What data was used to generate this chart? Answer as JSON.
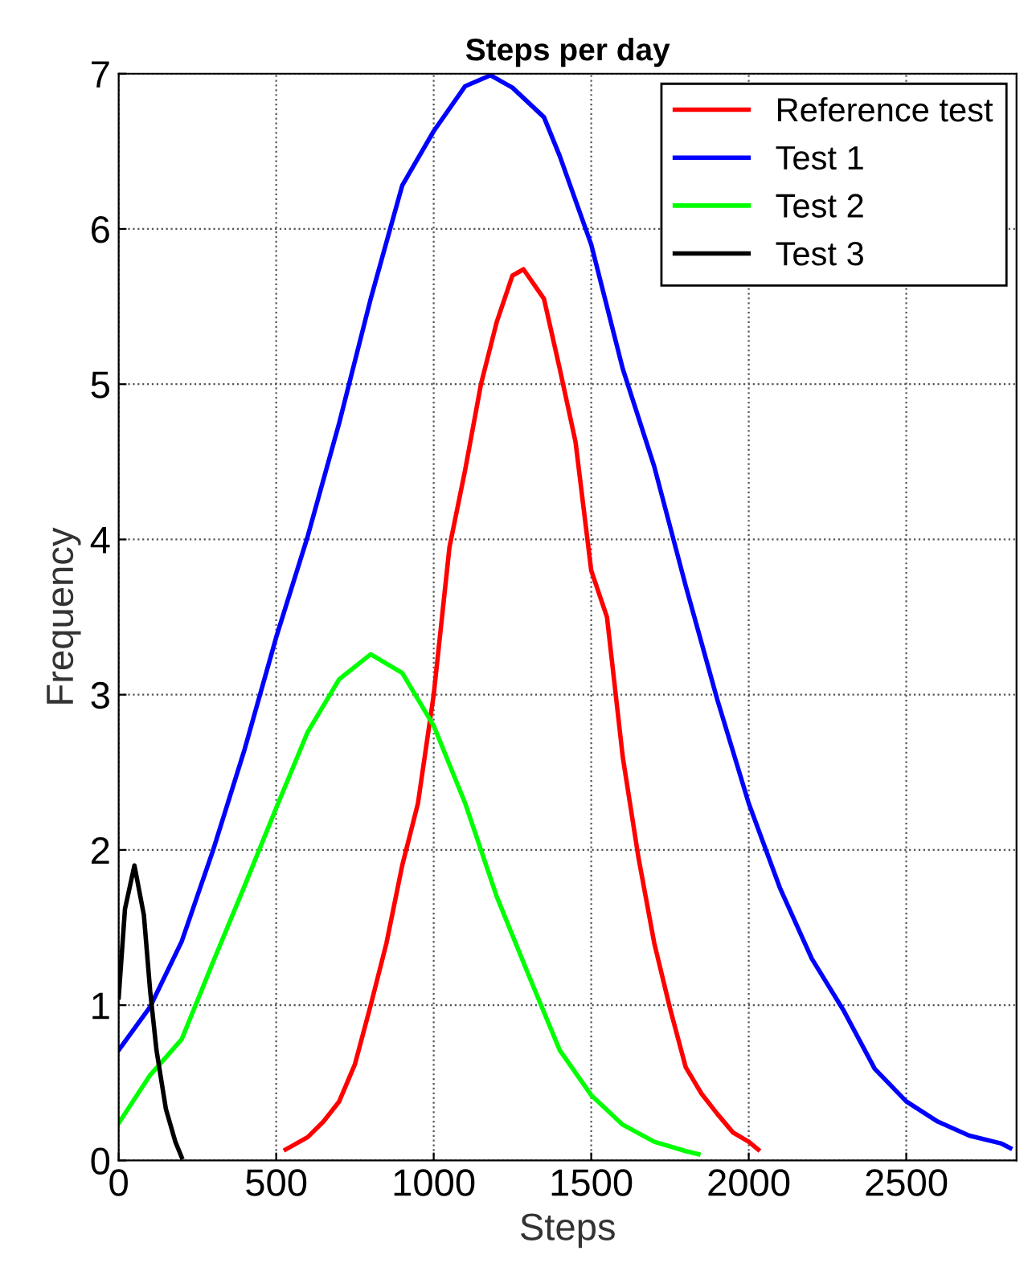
{
  "chart_data": {
    "type": "line",
    "title": "Steps per day",
    "xlabel": "Steps",
    "ylabel": "Frequency",
    "xlim": [
      0,
      2850
    ],
    "ylim": [
      0,
      7
    ],
    "xticks": [
      0,
      500,
      1000,
      1500,
      2000,
      2500
    ],
    "yticks": [
      0,
      1,
      2,
      3,
      4,
      5,
      6,
      7
    ],
    "grid": true,
    "legend": "top right",
    "line_style": "solid",
    "marker": "none",
    "series": [
      {
        "name": "Reference test",
        "color": "#ff0000",
        "x": [
          530,
          600,
          650,
          700,
          750,
          800,
          850,
          900,
          950,
          1000,
          1050,
          1100,
          1150,
          1200,
          1250,
          1285,
          1350,
          1400,
          1450,
          1500,
          1550,
          1600,
          1650,
          1700,
          1750,
          1800,
          1850,
          1900,
          1950,
          2000,
          2030
        ],
        "values": [
          0.07,
          0.15,
          0.25,
          0.38,
          0.62,
          1.0,
          1.4,
          1.9,
          2.3,
          3.0,
          3.95,
          4.45,
          5.0,
          5.4,
          5.7,
          5.74,
          5.55,
          5.1,
          4.63,
          3.8,
          3.5,
          2.6,
          1.95,
          1.4,
          0.98,
          0.6,
          0.43,
          0.3,
          0.18,
          0.12,
          0.07
        ]
      },
      {
        "name": "Test 1",
        "color": "#0000ff",
        "x": [
          0,
          100,
          200,
          300,
          400,
          500,
          600,
          700,
          800,
          900,
          1000,
          1100,
          1180,
          1250,
          1350,
          1400,
          1500,
          1600,
          1700,
          1800,
          1900,
          2000,
          2100,
          2200,
          2300,
          2400,
          2500,
          2600,
          2700,
          2800,
          2830
        ],
        "values": [
          0.71,
          0.99,
          1.41,
          2.0,
          2.65,
          3.37,
          4.02,
          4.75,
          5.55,
          6.28,
          6.63,
          6.92,
          6.99,
          6.91,
          6.72,
          6.47,
          5.9,
          5.1,
          4.47,
          3.7,
          2.97,
          2.3,
          1.75,
          1.3,
          0.97,
          0.59,
          0.38,
          0.25,
          0.16,
          0.11,
          0.08
        ]
      },
      {
        "name": "Test 2",
        "color": "#00ff00",
        "x": [
          0,
          100,
          200,
          300,
          400,
          500,
          600,
          700,
          800,
          900,
          1000,
          1100,
          1200,
          1300,
          1400,
          1500,
          1600,
          1700,
          1800,
          1840
        ],
        "values": [
          0.24,
          0.55,
          0.78,
          1.28,
          1.77,
          2.27,
          2.76,
          3.1,
          3.26,
          3.14,
          2.8,
          2.3,
          1.7,
          1.2,
          0.71,
          0.42,
          0.23,
          0.12,
          0.06,
          0.04
        ]
      },
      {
        "name": "Test 3",
        "color": "#000000",
        "x": [
          0,
          20,
          50,
          80,
          100,
          120,
          150,
          180,
          200
        ],
        "values": [
          1.05,
          1.62,
          1.9,
          1.58,
          1.09,
          0.71,
          0.33,
          0.12,
          0.02
        ]
      }
    ]
  }
}
